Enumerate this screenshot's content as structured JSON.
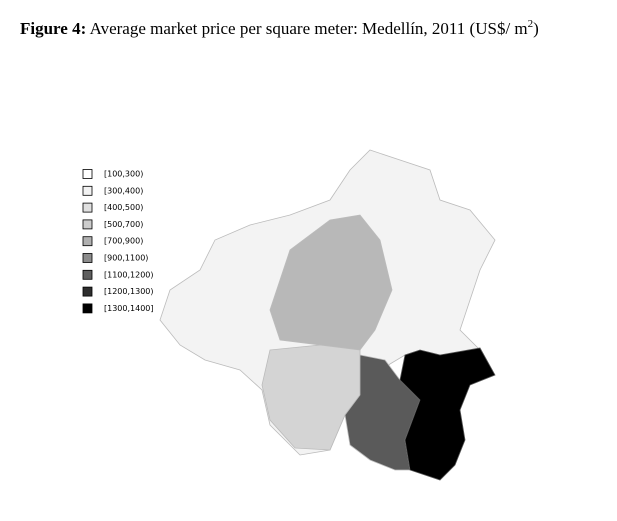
{
  "title": {
    "label": "Figure 4:",
    "text": "Average market price per square meter: Medellín, 2011 (US$/ m",
    "sup": "2",
    "end": ")"
  },
  "legend": [
    {
      "label": "[100,300)",
      "color": "#ffffff"
    },
    {
      "label": "[300,400)",
      "color": "#f2f2f2"
    },
    {
      "label": "[400,500)",
      "color": "#e0e0e0"
    },
    {
      "label": "[500,700)",
      "color": "#cccccc"
    },
    {
      "label": "[700,900)",
      "color": "#b0b0b0"
    },
    {
      "label": "[900,1100)",
      "color": "#8c8c8c"
    },
    {
      "label": "[1100,1200)",
      "color": "#5e5e5e"
    },
    {
      "label": "[1200,1300)",
      "color": "#2e2e2e"
    },
    {
      "label": "[1300,1400]",
      "color": "#000000"
    }
  ]
}
